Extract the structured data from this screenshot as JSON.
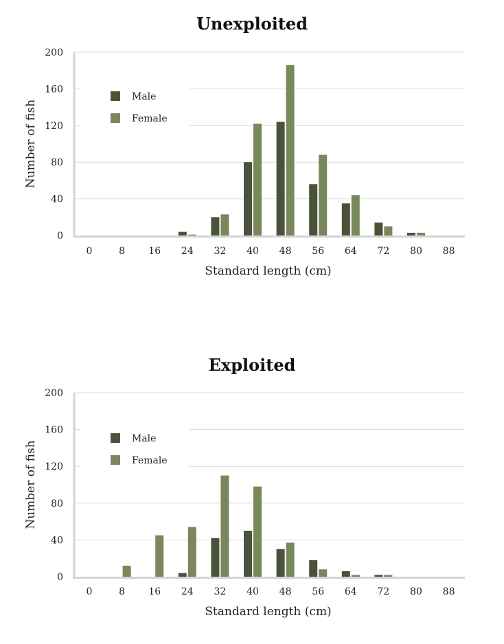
{
  "colors": {
    "male": "#4a523a",
    "female": "#79875c",
    "grid": "#d9d9d9",
    "axis": "#d4d4d4"
  },
  "chart_data": [
    {
      "type": "bar",
      "title": "Unexploited",
      "xlabel": "Standard length (cm)",
      "ylabel": "Number of fish",
      "categories": [
        "0",
        "8",
        "16",
        "24",
        "32",
        "40",
        "48",
        "56",
        "64",
        "72",
        "80",
        "88"
      ],
      "yticks": [
        "0",
        "40",
        "80",
        "120",
        "160",
        "200"
      ],
      "ylim": [
        0,
        200
      ],
      "grid": true,
      "legend_position": "top-left",
      "series": [
        {
          "name": "Male",
          "values": [
            0,
            0,
            0,
            4,
            20,
            80,
            124,
            56,
            35,
            14,
            3,
            0
          ]
        },
        {
          "name": "Female",
          "values": [
            0,
            0,
            0,
            1,
            23,
            122,
            186,
            88,
            44,
            10,
            3,
            0
          ]
        }
      ]
    },
    {
      "type": "bar",
      "title": "Exploited",
      "xlabel": "Standard length (cm)",
      "ylabel": "Number of fish",
      "categories": [
        "0",
        "8",
        "16",
        "24",
        "32",
        "40",
        "48",
        "56",
        "64",
        "72",
        "80",
        "88"
      ],
      "yticks": [
        "0",
        "40",
        "80",
        "120",
        "160",
        "200"
      ],
      "ylim": [
        0,
        200
      ],
      "grid": true,
      "legend_position": "top-left",
      "series": [
        {
          "name": "Male",
          "values": [
            0,
            0,
            0,
            4,
            42,
            50,
            30,
            18,
            6,
            2,
            0,
            0
          ]
        },
        {
          "name": "Female",
          "values": [
            0,
            12,
            45,
            54,
            110,
            98,
            37,
            8,
            2,
            2,
            0,
            0
          ]
        }
      ]
    }
  ]
}
